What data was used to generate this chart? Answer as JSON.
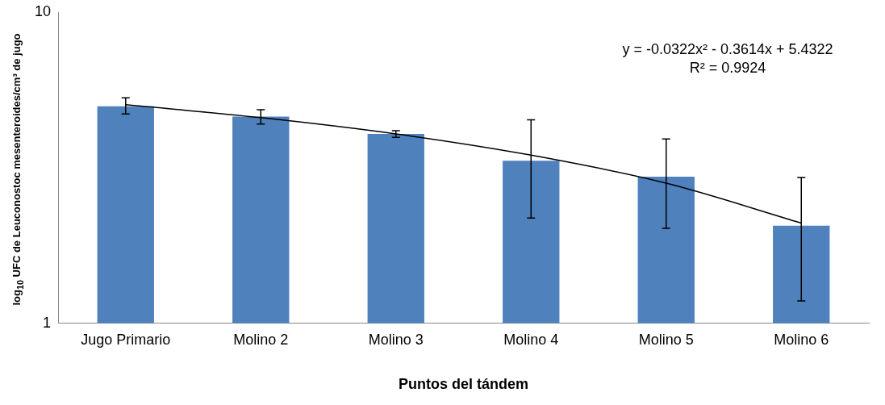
{
  "chart_data": {
    "type": "bar",
    "xlabel": "Puntos del tándem",
    "ylabel": "log$_{10}$ UFC de Leuconostoc mesenteroides/cm³ de jugo",
    "categories": [
      "Jugo Primario",
      "Molino 2",
      "Molino 3",
      "Molino 4",
      "Molino 5",
      "Molino 6"
    ],
    "series": [
      {
        "color": "#4f81bd",
        "values": [
          4.98,
          4.62,
          4.06,
          3.33,
          2.96,
          2.06
        ],
        "errors": [
          [
            4.71,
            5.3
          ],
          [
            4.37,
            4.86
          ],
          [
            3.96,
            4.16
          ],
          [
            2.18,
            4.51
          ],
          [
            2.02,
            3.91
          ],
          [
            1.18,
            2.94
          ]
        ]
      },
      {
        "type": "line",
        "color": "#000000",
        "marker": "none",
        "x": [
          "Jugo Primario",
          "Molino 2",
          "Molino 3",
          "Molino 4",
          "Molino 5",
          "Molino 6"
        ],
        "values": [
          5.04,
          4.58,
          4.06,
          3.47,
          2.82,
          2.1
        ]
      }
    ],
    "log": "y",
    "ylim": [
      1,
      10
    ],
    "yticks": [
      1,
      10
    ],
    "grid": false,
    "legend": false,
    "annotations": [
      "y = -0.0322x² - 0.3614x + 5.4322",
      "R² = 0.9924"
    ]
  }
}
